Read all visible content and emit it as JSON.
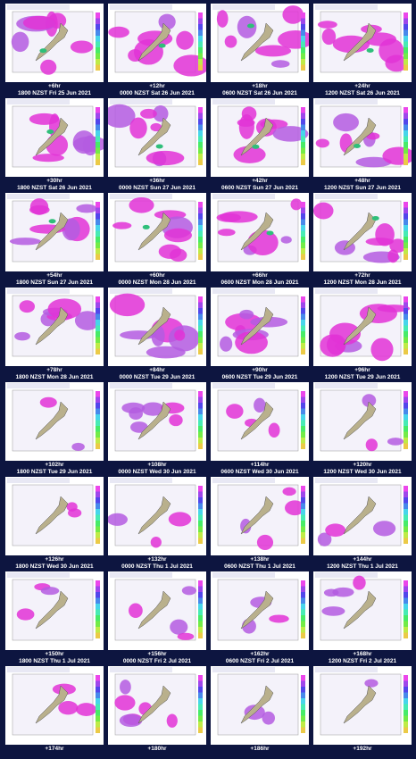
{
  "panels": [
    {
      "lead": "+6hr",
      "valid": "1800 NZST Fri 25 Jun 2021"
    },
    {
      "lead": "+12hr",
      "valid": "0000 NZST Sat 26 Jun 2021"
    },
    {
      "lead": "+18hr",
      "valid": "0600 NZST Sat 26 Jun 2021"
    },
    {
      "lead": "+24hr",
      "valid": "1200 NZST Sat 26 Jun 2021"
    },
    {
      "lead": "+30hr",
      "valid": "1800 NZST Sat 26 Jun 2021"
    },
    {
      "lead": "+36hr",
      "valid": "0000 NZST Sun 27 Jun 2021"
    },
    {
      "lead": "+42hr",
      "valid": "0600 NZST Sun 27 Jun 2021"
    },
    {
      "lead": "+48hr",
      "valid": "1200 NZST Sun 27 Jun 2021"
    },
    {
      "lead": "+54hr",
      "valid": "1800 NZST Sun 27 Jun 2021"
    },
    {
      "lead": "+60hr",
      "valid": "0000 NZST Mon 28 Jun 2021"
    },
    {
      "lead": "+66hr",
      "valid": "0600 NZST Mon 28 Jun 2021"
    },
    {
      "lead": "+72hr",
      "valid": "1200 NZST Mon 28 Jun 2021"
    },
    {
      "lead": "+78hr",
      "valid": "1800 NZST Mon 28 Jun 2021"
    },
    {
      "lead": "+84hr",
      "valid": "0000 NZST Tue 29 Jun 2021"
    },
    {
      "lead": "+90hr",
      "valid": "0600 NZST Tue 29 Jun 2021"
    },
    {
      "lead": "+96hr",
      "valid": "1200 NZST Tue 29 Jun 2021"
    },
    {
      "lead": "+102hr",
      "valid": "1800 NZST Tue 29 Jun 2021"
    },
    {
      "lead": "+108hr",
      "valid": "0000 NZST Wed 30 Jun 2021"
    },
    {
      "lead": "+114hr",
      "valid": "0600 NZST Wed 30 Jun 2021"
    },
    {
      "lead": "+120hr",
      "valid": "1200 NZST Wed 30 Jun 2021"
    },
    {
      "lead": "+126hr",
      "valid": "1800 NZST Wed 30 Jun 2021"
    },
    {
      "lead": "+132hr",
      "valid": "0000 NZST Thu 1 Jul 2021"
    },
    {
      "lead": "+138hr",
      "valid": "0600 NZST Thu 1 Jul 2021"
    },
    {
      "lead": "+144hr",
      "valid": "1200 NZST Thu 1 Jul 2021"
    },
    {
      "lead": "+150hr",
      "valid": "1800 NZST Thu 1 Jul 2021"
    },
    {
      "lead": "+156hr",
      "valid": "0000 NZST Fri 2 Jul 2021"
    },
    {
      "lead": "+162hr",
      "valid": "0600 NZST Fri 2 Jul 2021"
    },
    {
      "lead": "+168hr",
      "valid": "1200 NZST Fri 2 Jul 2021"
    },
    {
      "lead": "+174hr"
    },
    {
      "lead": "+180hr"
    },
    {
      "lead": "+186hr"
    },
    {
      "lead": "+192hr"
    }
  ]
}
